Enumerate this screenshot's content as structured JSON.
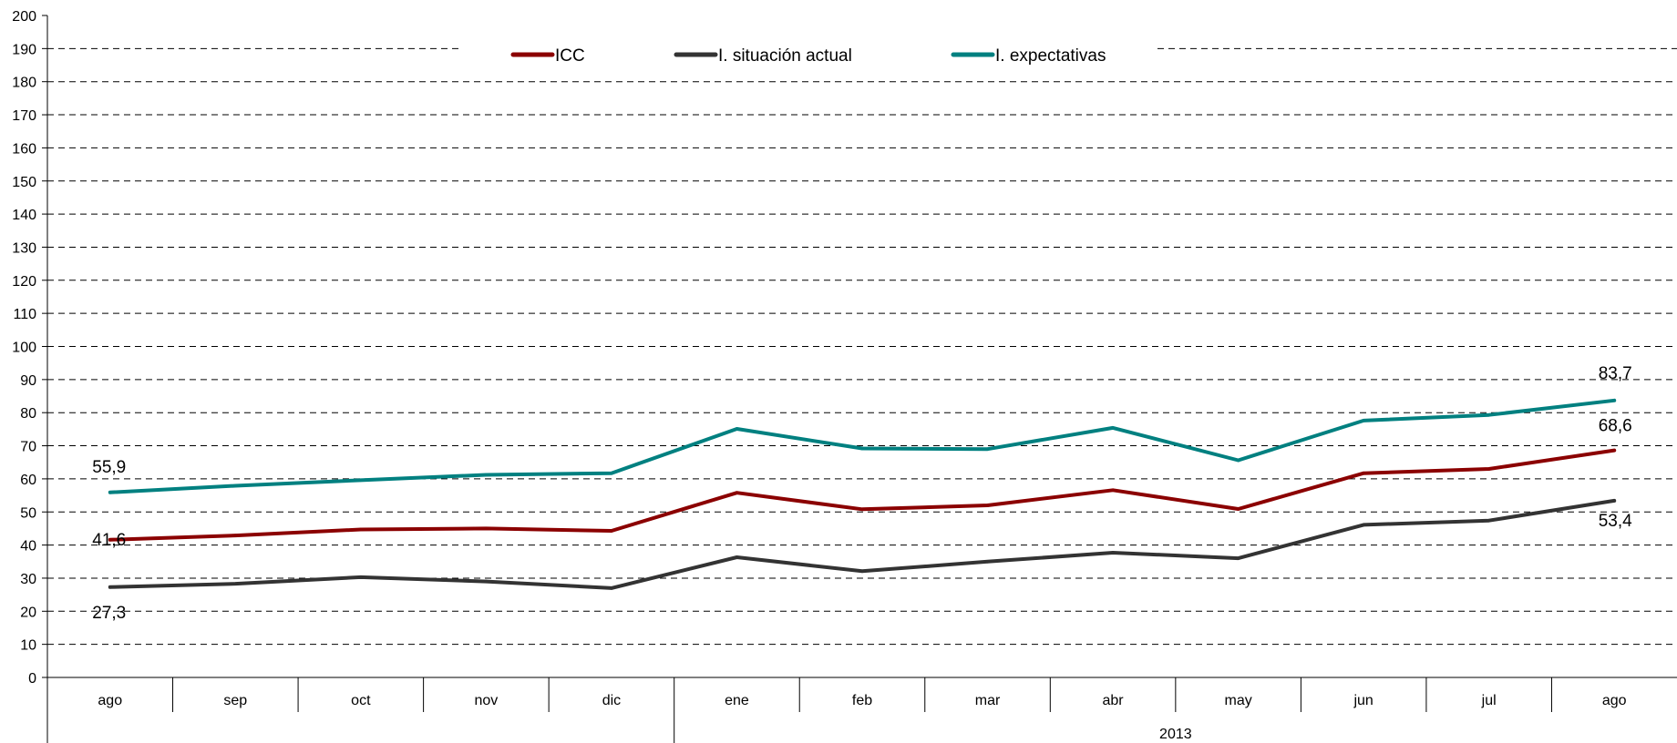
{
  "chart_data": {
    "type": "line",
    "title": "",
    "xlabel": "",
    "ylabel": "",
    "ylim": [
      0,
      200
    ],
    "ytick_step": 10,
    "grid": "horizontal dashed",
    "legend_placement": "top-center",
    "categories": [
      "ago",
      "sep",
      "oct",
      "nov",
      "dic",
      "ene",
      "feb",
      "mar",
      "abr",
      "may",
      "jun",
      "jul",
      "ago"
    ],
    "year_groups": [
      {
        "label": "",
        "start": 0,
        "end": 4
      },
      {
        "label": "2013",
        "start": 5,
        "end": 12
      }
    ],
    "series": [
      {
        "name": "ICC",
        "color": "#8B0000",
        "values": [
          41.6,
          42.9,
          44.7,
          45.0,
          44.3,
          55.8,
          50.8,
          52.0,
          56.6,
          50.9,
          61.7,
          63.0,
          68.6
        ]
      },
      {
        "name": "I. situación actual",
        "color": "#333333",
        "values": [
          27.3,
          28.3,
          30.3,
          29.0,
          27.0,
          36.3,
          32.1,
          35.0,
          37.7,
          36.0,
          46.1,
          47.4,
          53.4
        ]
      },
      {
        "name": "I. expectativas",
        "color": "#008080",
        "values": [
          55.9,
          57.9,
          59.6,
          61.2,
          61.7,
          75.1,
          69.2,
          69.0,
          75.4,
          65.6,
          77.6,
          79.3,
          83.7
        ]
      }
    ],
    "data_labels": [
      {
        "series": 2,
        "index": 0,
        "text": "55,9"
      },
      {
        "series": 0,
        "index": 0,
        "text": "41,6"
      },
      {
        "series": 1,
        "index": 0,
        "text": "27,3"
      },
      {
        "series": 2,
        "index": 12,
        "text": "83,7"
      },
      {
        "series": 0,
        "index": 12,
        "text": "68,6"
      },
      {
        "series": 1,
        "index": 12,
        "text": "53,4"
      }
    ]
  }
}
